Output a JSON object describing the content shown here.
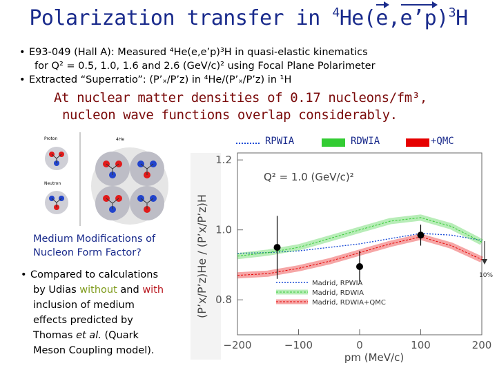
{
  "title": {
    "main": "Polarization transfer in ",
    "sup": "4",
    "nucleus": "He(",
    "e": "e",
    "comma": ",",
    "eprime": "e’p",
    "close": ")",
    "sup2": "3",
    "h": "H"
  },
  "bullets": {
    "b1_line1": "E93-049 (Hall A): Measured ⁴He(e,e’p)³H in quasi-elastic kinematics",
    "b1_line2": "for Q² = 0.5, 1.0, 1.6 and 2.6 (GeV/c)² using Focal Plane Polarimeter",
    "b2": "Extracted “Superratio”: (P’ₓ/P’z) in ⁴He/(P’ₓ/P’z) in ¹H"
  },
  "statement": {
    "line1": "At nuclear matter densities of 0.17 nucleons/fm³,",
    "line2": "nucleon wave functions overlap considerably."
  },
  "legend": {
    "rpwia": "RPWIA",
    "rdwia": "RDWIA",
    "qmc": "+QMC",
    "rdwia_color": "#33cc33",
    "qmc_color": "#e60000"
  },
  "inset": {
    "proton_label": "Proton",
    "neutron_label": "Neutron",
    "he_label": "4He"
  },
  "medium": {
    "line1": "Medium Modifications of",
    "line2": "Nucleon Form Factor?"
  },
  "compare": {
    "l1": "Compared to calculations",
    "l2a": "by Udias ",
    "without": "without",
    "l2b": " and ",
    "with": "with",
    "l3": "inclusion of medium",
    "l4": "effects predicted by",
    "l5a": "Thomas ",
    "etal": "et al.",
    "l5b": " (Quark",
    "l6": "Meson Coupling model)."
  },
  "chart_data": {
    "type": "line",
    "annotation": "Q² = 1.0 (GeV/c)²",
    "ylabel": "(P’x/P’z)He / (P’x/P’z)H",
    "xlabel": "pm (MeV/c)",
    "xlim": [
      -200,
      200
    ],
    "ylim": [
      0.7,
      1.22
    ],
    "x_ticks": [
      "−200",
      "−100",
      "0",
      "100",
      "200"
    ],
    "y_ticks": [
      "0.8",
      "1.0",
      "1.2"
    ],
    "side_label": "10%",
    "series": [
      {
        "name": "Madrid, RPWIA",
        "style": "dotted",
        "color": "#1a4bd6",
        "x": [
          -200,
          -150,
          -100,
          -50,
          0,
          50,
          100,
          150,
          200
        ],
        "y": [
          0.933,
          0.935,
          0.94,
          0.95,
          0.96,
          0.975,
          0.99,
          0.985,
          0.97
        ]
      },
      {
        "name": "Madrid, RDWIA",
        "style": "band",
        "color": "#33cc33",
        "x": [
          -200,
          -150,
          -100,
          -50,
          0,
          50,
          100,
          150,
          200
        ],
        "y": [
          0.925,
          0.935,
          0.95,
          0.975,
          1.0,
          1.025,
          1.035,
          1.01,
          0.965
        ]
      },
      {
        "name": "Madrid, RDWIA+QMC",
        "style": "band",
        "color": "#e60000",
        "x": [
          -200,
          -150,
          -100,
          -50,
          0,
          50,
          100,
          150,
          200
        ],
        "y": [
          0.87,
          0.875,
          0.89,
          0.91,
          0.935,
          0.96,
          0.98,
          0.955,
          0.915
        ]
      }
    ],
    "points": {
      "x": [
        -135,
        0,
        100
      ],
      "y": [
        0.95,
        0.895,
        0.985
      ],
      "err": [
        0.09,
        0.045,
        0.03
      ]
    }
  }
}
